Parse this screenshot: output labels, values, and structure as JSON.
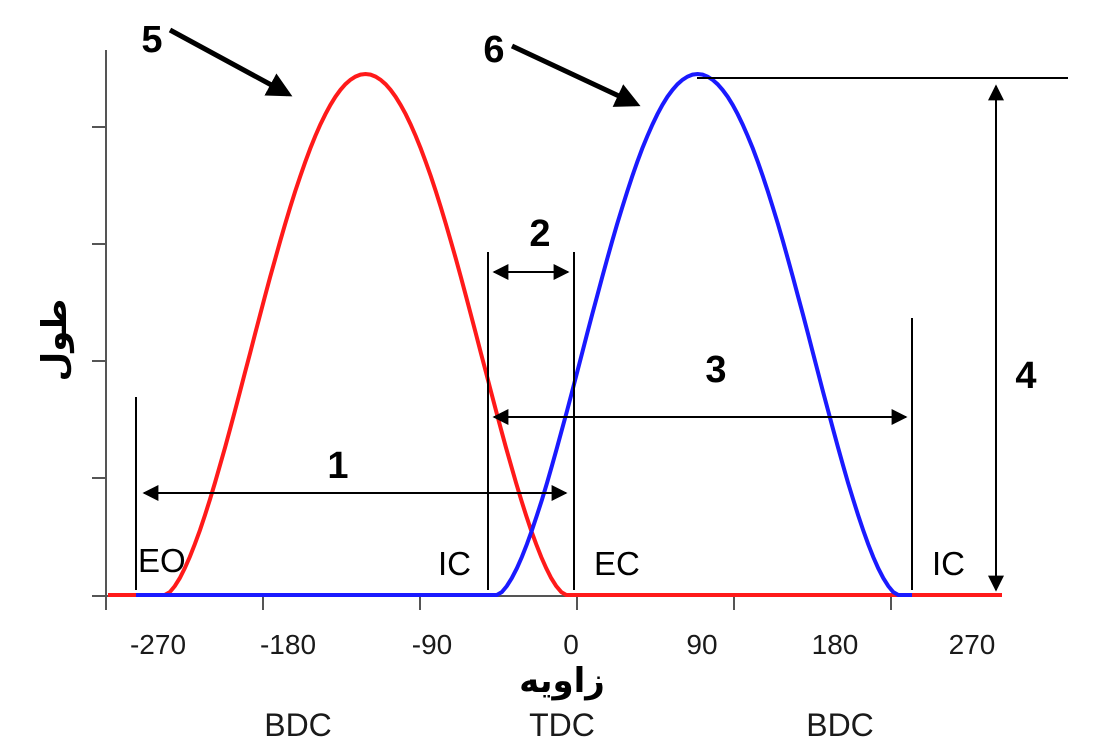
{
  "diagram": {
    "axis": {
      "x_label": "زاویه",
      "y_label": "طول",
      "x_ticks": [
        "-270",
        "-180",
        "-90",
        "0",
        "90",
        "180",
        "270"
      ],
      "dead_centers": [
        "BDC",
        "TDC",
        "BDC"
      ]
    },
    "valve_events": {
      "eo": "EO",
      "ic_left": "IC",
      "ec": "EC",
      "ic_right": "IC"
    },
    "callouts": [
      "1",
      "2",
      "3",
      "4",
      "5",
      "6"
    ],
    "colors": {
      "exhaust_curve": "#ff1a1a",
      "intake_curve": "#1a1aff",
      "lines": "#000000"
    }
  },
  "chart_data": {
    "type": "line",
    "xlabel": "زاویه",
    "ylabel": "طول",
    "xlim": [
      -320,
      300
    ],
    "series": [
      {
        "x_open": -265,
        "x_close": -5,
        "x_peak": -135,
        "peak": 1.0
      },
      {
        "x_open": -50,
        "x_close": 210,
        "x_peak": 75,
        "peak": 1.0
      }
    ]
  }
}
